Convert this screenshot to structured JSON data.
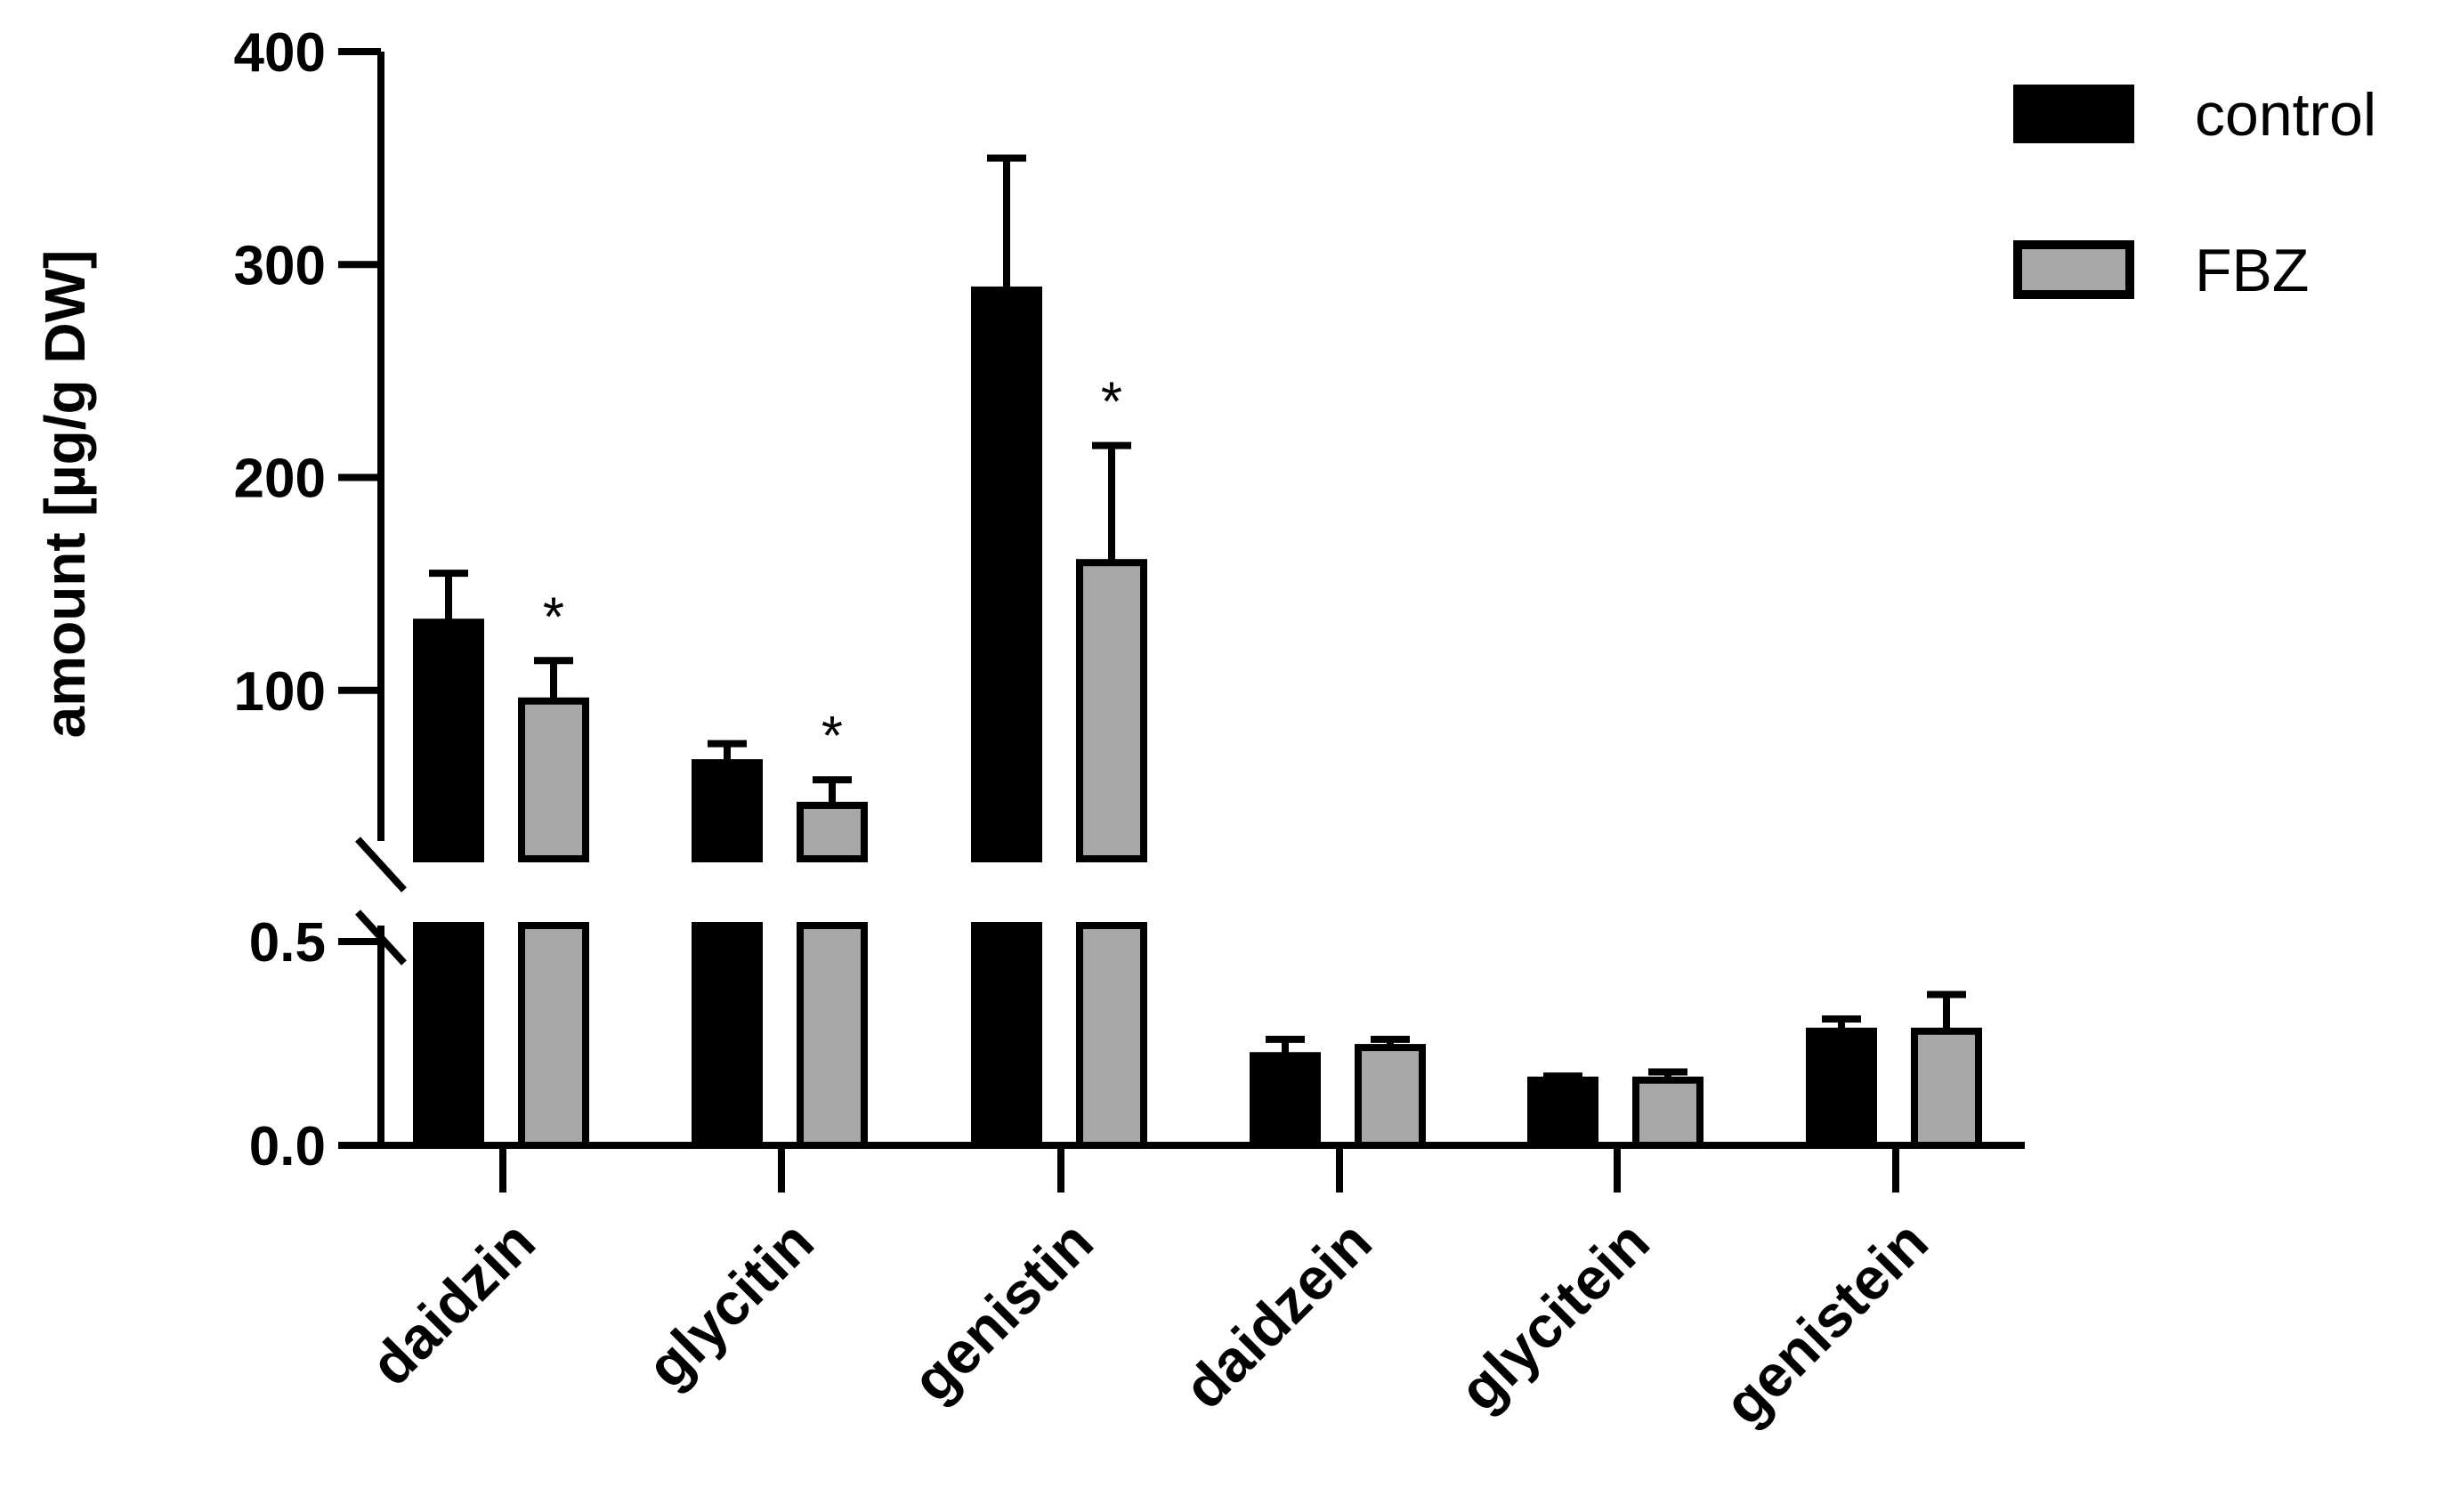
{
  "chart_data": {
    "type": "bar",
    "ylabel": "amount [µg/g DW]",
    "categories": [
      "daidzin",
      "glycitin",
      "genistin",
      "daidzein",
      "glycitein",
      "genistein"
    ],
    "series": [
      {
        "name": "control",
        "color": "#000000",
        "values": [
          132,
          66,
          288,
          0.22,
          0.16,
          0.28
        ],
        "errors": [
          23,
          9,
          62,
          0.04,
          0.01,
          0.03
        ]
      },
      {
        "name": "FBZ",
        "color": "#a7a7a9",
        "values": [
          95,
          46,
          160,
          0.24,
          0.16,
          0.28
        ],
        "errors": [
          19,
          12,
          55,
          0.02,
          0.02,
          0.09
        ]
      }
    ],
    "significance": [
      {
        "category": "daidzin",
        "series": "FBZ",
        "mark": "*"
      },
      {
        "category": "glycitin",
        "series": "FBZ",
        "mark": "*"
      },
      {
        "category": "genistin",
        "series": "FBZ",
        "mark": "*"
      }
    ],
    "y_axis_upper": {
      "ylim": [
        0,
        400
      ],
      "ticks": [
        "100",
        "200",
        "300",
        "400"
      ],
      "tick_values": [
        100,
        200,
        300,
        400
      ]
    },
    "y_axis_lower": {
      "ylim": [
        0,
        0.5
      ],
      "ticks": [
        "0.0",
        "0.5"
      ],
      "tick_values": [
        0,
        0.5
      ]
    },
    "axis_break": true,
    "grid": false,
    "legend_position": "top-right"
  }
}
